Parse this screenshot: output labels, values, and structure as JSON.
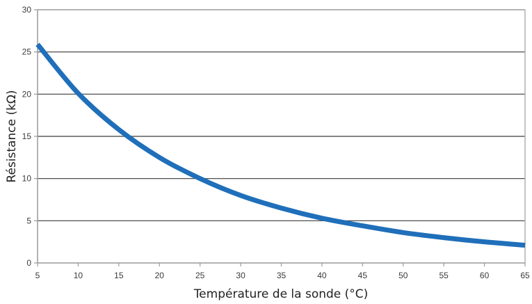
{
  "chart_data": {
    "type": "line",
    "title": "",
    "xlabel": "Température de la sonde (°C)",
    "ylabel": "Résistance (kΩ)",
    "xlim": [
      5,
      65
    ],
    "ylim": [
      0,
      30
    ],
    "x_ticks": [
      5,
      10,
      15,
      20,
      25,
      30,
      35,
      40,
      45,
      50,
      55,
      60,
      65
    ],
    "y_ticks": [
      0,
      5,
      10,
      15,
      20,
      25,
      30
    ],
    "grid": {
      "horizontal": true,
      "vertical": false
    },
    "legend": null,
    "series": [
      {
        "name": "Résistance",
        "color": "#1f6fba",
        "x": [
          5,
          10,
          15,
          20,
          25,
          30,
          35,
          40,
          45,
          50,
          55,
          60,
          65
        ],
        "values": [
          25.9,
          20.1,
          15.8,
          12.5,
          10.0,
          8.0,
          6.5,
          5.3,
          4.4,
          3.6,
          3.0,
          2.5,
          2.1
        ]
      }
    ]
  },
  "style": {
    "line_color": "#1f6fba",
    "grid_color": "#3a3a3a",
    "axis_color": "#9a9a9a",
    "border_color": "#b0b0b0"
  }
}
